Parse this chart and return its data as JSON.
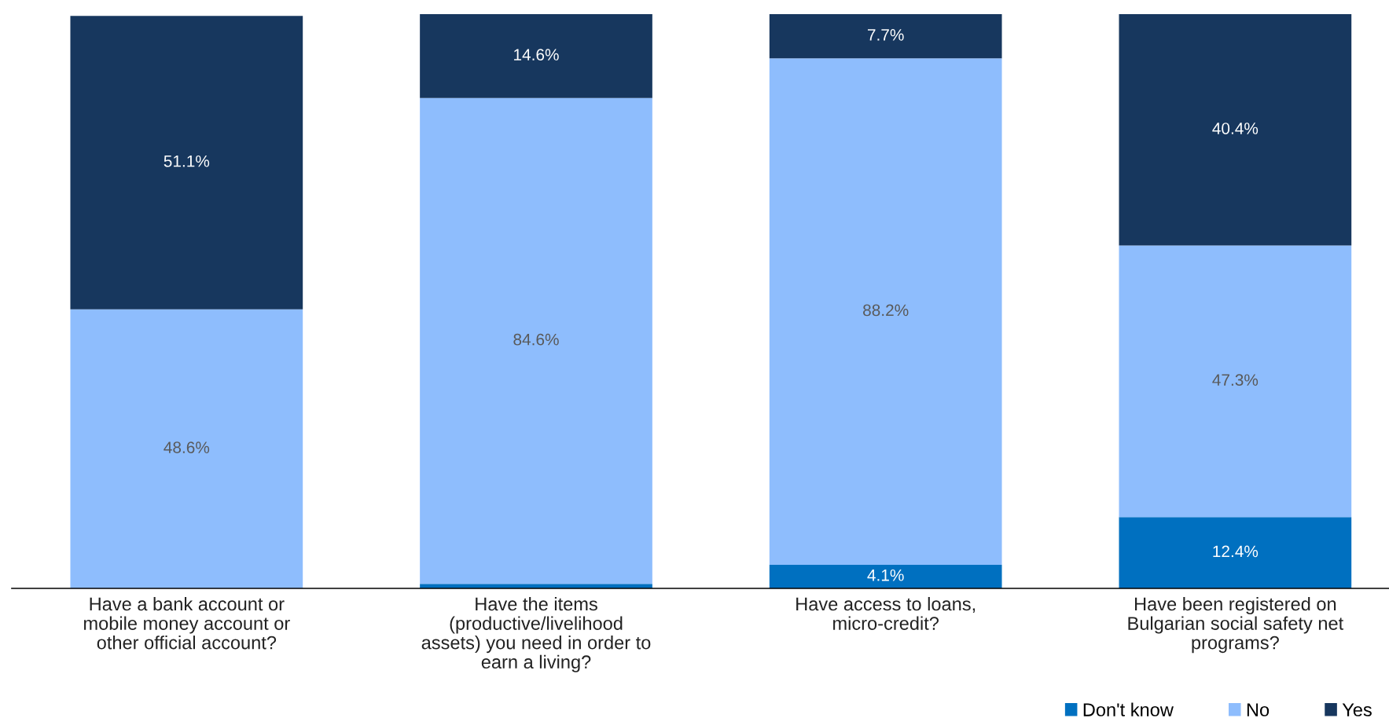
{
  "chart_data": {
    "type": "bar",
    "stacked": true,
    "categories": [
      "Have a bank account or mobile money account or other official account?",
      "Have the items (productive/livelihood assets) you need in order to earn a living?",
      "Have access to loans, micro-credit?",
      "Have been registered on Bulgarian social safety net programs?"
    ],
    "series": [
      {
        "name": "Don't know",
        "color": "#0070c0",
        "values": [
          null,
          0.8,
          4.1,
          12.4
        ],
        "value_labels": [
          null,
          null,
          "4.1%",
          "12.4%"
        ]
      },
      {
        "name": "No",
        "color": "#8ebdfd",
        "values": [
          48.6,
          84.6,
          88.2,
          47.3
        ],
        "value_labels": [
          "48.6%",
          "84.6%",
          "88.2%",
          "47.3%"
        ]
      },
      {
        "name": "Yes",
        "color": "#17375e",
        "values": [
          51.1,
          14.6,
          7.7,
          40.4
        ],
        "value_labels": [
          "51.1%",
          "14.6%",
          "7.7%",
          "40.4%"
        ]
      }
    ],
    "ylim": [
      0,
      100
    ],
    "tick_labels": "x",
    "grid": false,
    "legend": "bottom right"
  }
}
